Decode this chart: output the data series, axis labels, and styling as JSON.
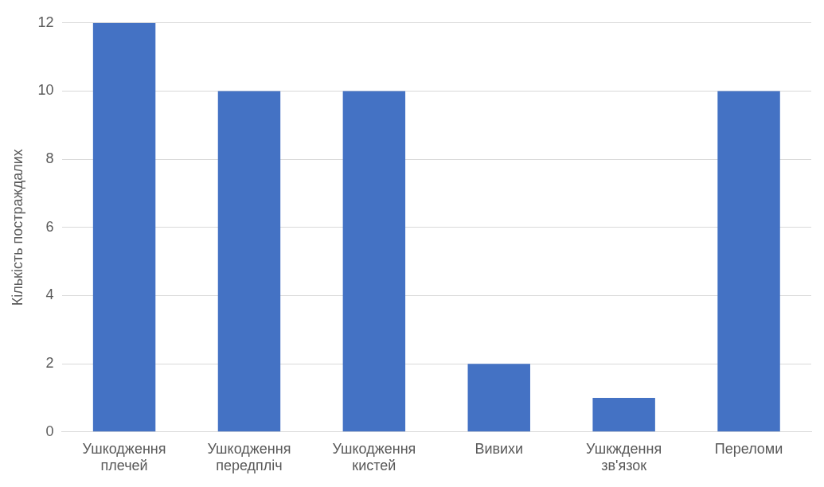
{
  "chart_data": {
    "type": "bar",
    "ylabel": "Кількість постраждалих",
    "categories": [
      "Ушкодження плечей",
      "Ушкодження передпліч",
      "Ушкодження кистей",
      "Вивихи",
      "Ушкждення зв'язок",
      "Переломи"
    ],
    "values": [
      12,
      10,
      10,
      2,
      1,
      10
    ],
    "color": "#4472c4",
    "ylim": [
      0,
      12
    ],
    "yticks": [
      0,
      2,
      4,
      6,
      8,
      10,
      12
    ],
    "grid": "y"
  }
}
